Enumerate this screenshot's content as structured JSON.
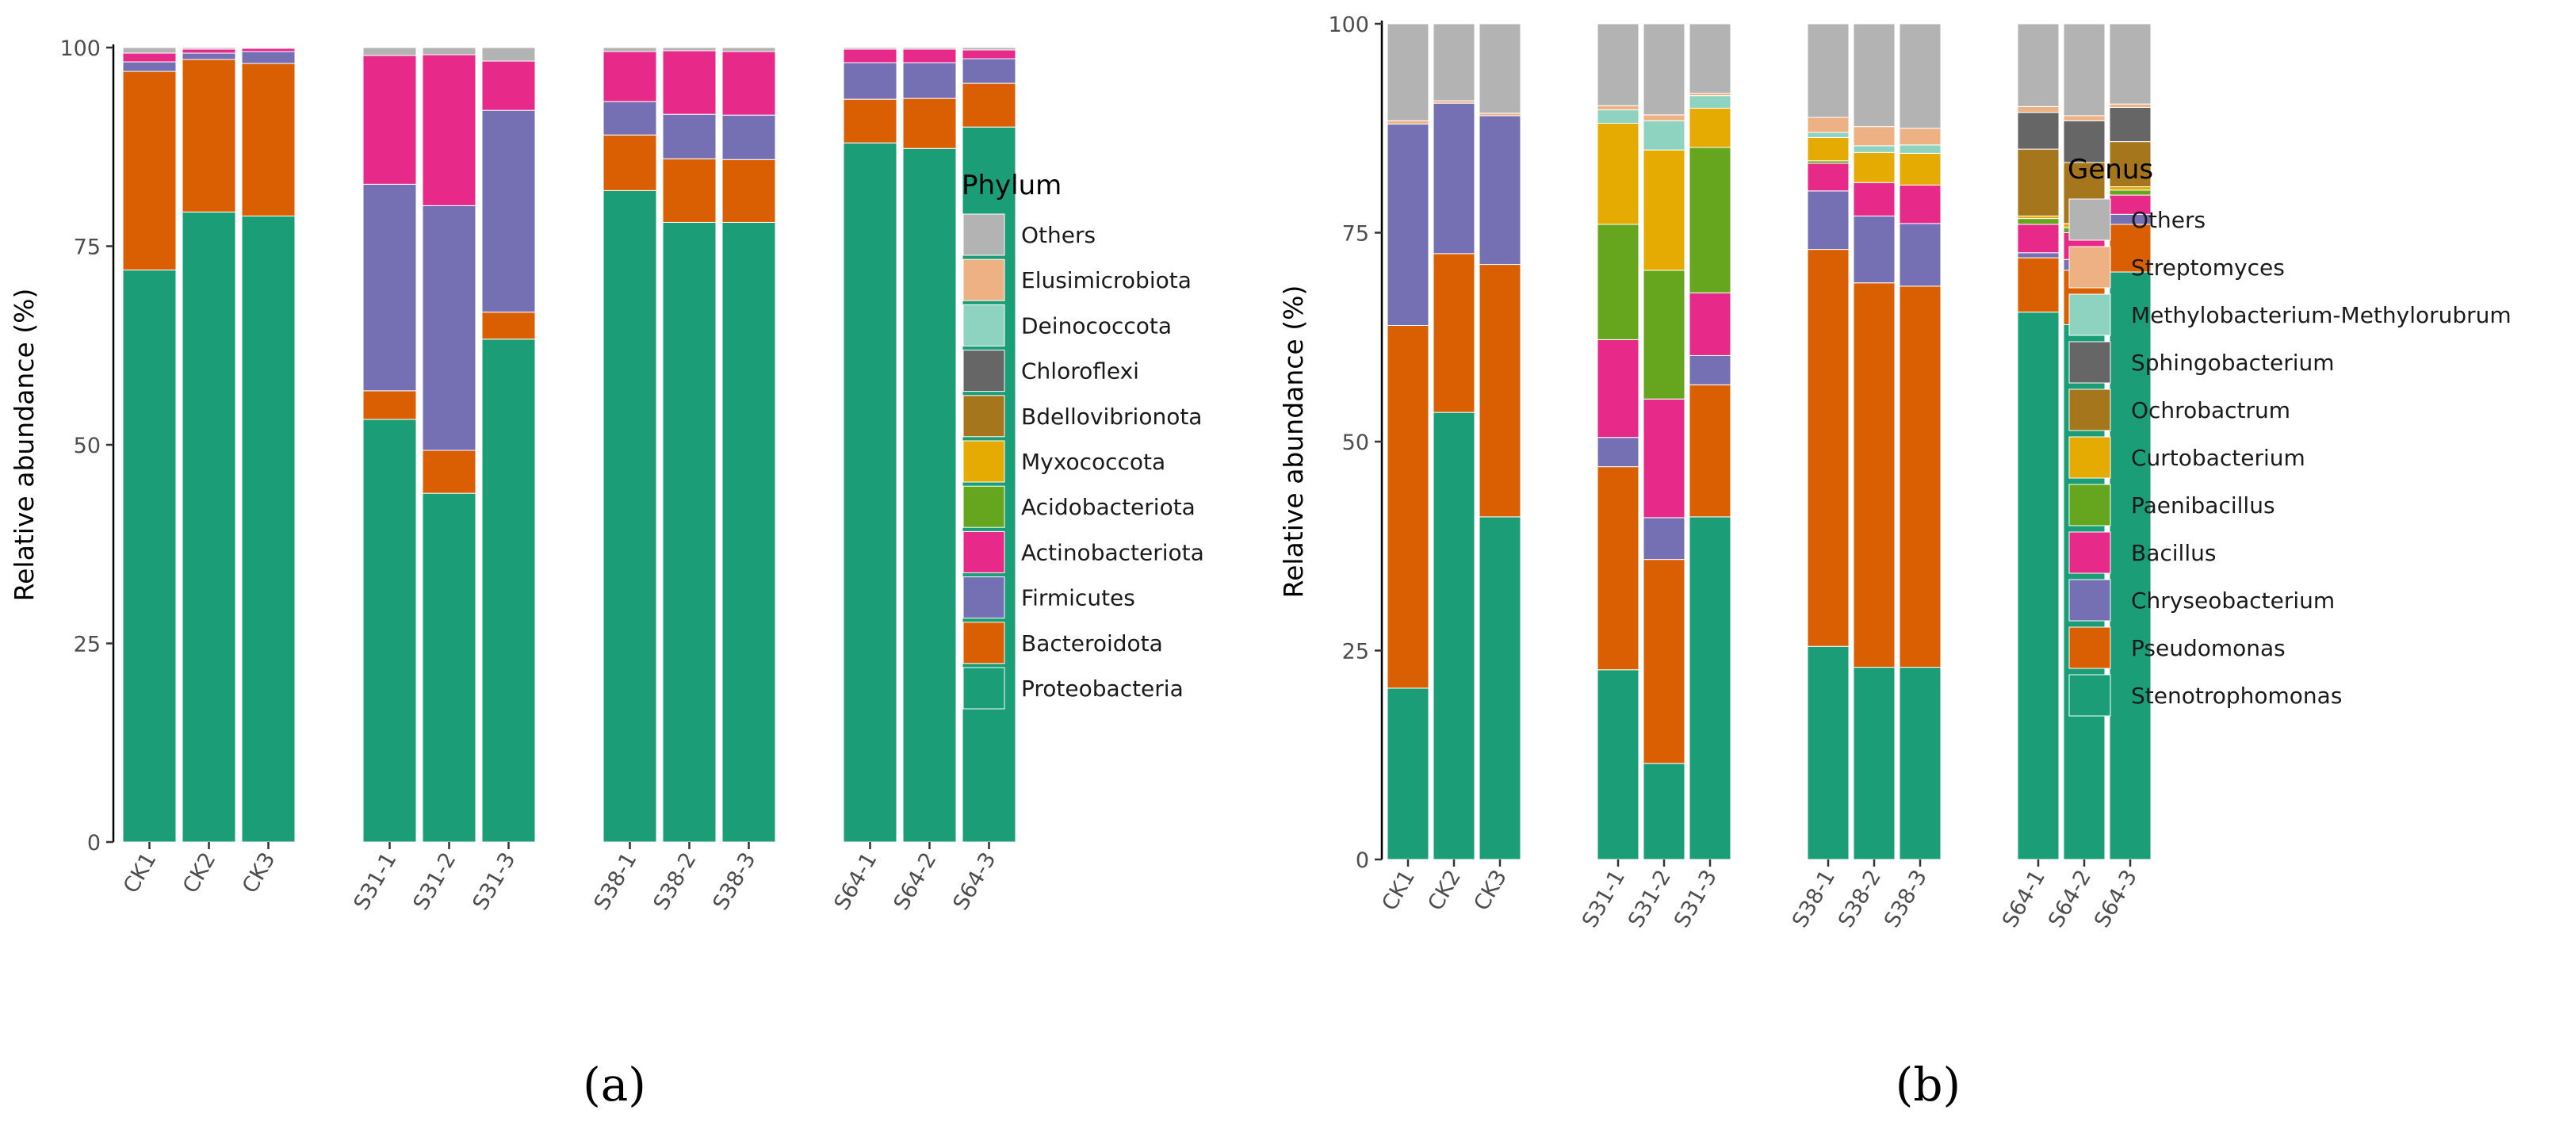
{
  "chart_data": [
    {
      "type": "bar",
      "stacked": true,
      "panel_label": "(a)",
      "ylabel": "Relative abundance (%)",
      "ylim": [
        0,
        100
      ],
      "yticks": [
        0,
        25,
        50,
        75,
        100
      ],
      "legend_title": "Phylum",
      "legend_position": "right",
      "categories": [
        "CK1",
        "CK2",
        "CK3",
        "S31-1",
        "S31-2",
        "S31-3",
        "S38-1",
        "S38-2",
        "S38-3",
        "S64-1",
        "S64-2",
        "S64-3"
      ],
      "groups": [
        [
          "CK1",
          "CK2",
          "CK3"
        ],
        [
          "S31-1",
          "S31-2",
          "S31-3"
        ],
        [
          "S38-1",
          "S38-2",
          "S38-3"
        ],
        [
          "S64-1",
          "S64-2",
          "S64-3"
        ]
      ],
      "series": [
        {
          "name": "Proteobacteria",
          "color": "#1b9e77",
          "values": [
            72.0,
            79.3,
            78.8,
            53.2,
            43.9,
            63.3,
            82.0,
            78.0,
            78.0,
            88.0,
            87.3,
            90.0
          ]
        },
        {
          "name": "Bacteroidota",
          "color": "#d95f02",
          "values": [
            25.0,
            19.2,
            19.2,
            3.6,
            5.4,
            3.4,
            7.0,
            8.0,
            7.9,
            5.5,
            6.3,
            5.5
          ]
        },
        {
          "name": "Firmicutes",
          "color": "#7570b3",
          "values": [
            1.2,
            0.8,
            1.5,
            26.0,
            30.8,
            25.4,
            4.2,
            5.6,
            5.6,
            4.6,
            4.5,
            3.1
          ]
        },
        {
          "name": "Actinobacteriota",
          "color": "#e7298a",
          "values": [
            1.1,
            0.5,
            0.4,
            16.2,
            19.0,
            6.2,
            6.3,
            8.0,
            8.0,
            1.7,
            1.7,
            1.1
          ]
        },
        {
          "name": "Acidobacteriota",
          "color": "#66a61e",
          "values": [
            0,
            0,
            0,
            0,
            0,
            0,
            0,
            0,
            0,
            0,
            0,
            0
          ]
        },
        {
          "name": "Myxococcota",
          "color": "#e6ab02",
          "values": [
            0,
            0,
            0,
            0,
            0,
            0,
            0,
            0,
            0,
            0,
            0,
            0
          ]
        },
        {
          "name": "Bdellovibrionota",
          "color": "#a6761d",
          "values": [
            0,
            0,
            0,
            0,
            0,
            0,
            0,
            0,
            0,
            0,
            0,
            0
          ]
        },
        {
          "name": "Chloroflexi",
          "color": "#666666",
          "values": [
            0,
            0,
            0,
            0,
            0,
            0,
            0,
            0,
            0,
            0,
            0,
            0
          ]
        },
        {
          "name": "Deinococcota",
          "color": "#8dd3c0",
          "values": [
            0,
            0,
            0,
            0,
            0,
            0,
            0,
            0,
            0,
            0,
            0,
            0
          ]
        },
        {
          "name": "Elusimicrobiota",
          "color": "#edb183",
          "values": [
            0,
            0,
            0,
            0,
            0,
            0,
            0,
            0,
            0,
            0,
            0,
            0
          ]
        },
        {
          "name": "Others",
          "color": "#b3b3b3",
          "values": [
            0.7,
            0.2,
            0.1,
            1.0,
            0.9,
            1.7,
            0.5,
            0.4,
            0.5,
            0.2,
            0.2,
            0.3
          ]
        }
      ]
    },
    {
      "type": "bar",
      "stacked": true,
      "panel_label": "(b)",
      "ylabel": "Relative abundance (%)",
      "ylim": [
        0,
        100
      ],
      "yticks": [
        0,
        25,
        50,
        75,
        100
      ],
      "legend_title": "Genus",
      "legend_position": "right",
      "categories": [
        "CK1",
        "CK2",
        "CK3",
        "S31-1",
        "S31-2",
        "S31-3",
        "S38-1",
        "S38-2",
        "S38-3",
        "S64-1",
        "S64-2",
        "S64-3"
      ],
      "groups": [
        [
          "CK1",
          "CK2",
          "CK3"
        ],
        [
          "S31-1",
          "S31-2",
          "S31-3"
        ],
        [
          "S38-1",
          "S38-2",
          "S38-3"
        ],
        [
          "S64-1",
          "S64-2",
          "S64-3"
        ]
      ],
      "series": [
        {
          "name": "Stenotrophomonas",
          "color": "#1b9e77",
          "values": [
            20.5,
            53.5,
            41.0,
            22.7,
            11.5,
            41.0,
            25.5,
            23.0,
            23.0,
            65.5,
            64.0,
            70.3
          ]
        },
        {
          "name": "Pseudomonas",
          "color": "#d95f02",
          "values": [
            43.4,
            19.0,
            30.2,
            24.3,
            24.4,
            15.8,
            47.5,
            46.0,
            45.6,
            6.5,
            6.5,
            5.7
          ]
        },
        {
          "name": "Chryseobacterium",
          "color": "#7570b3",
          "values": [
            24.1,
            18.0,
            17.8,
            3.5,
            5.0,
            3.5,
            7.0,
            8.0,
            7.5,
            0.6,
            1.3,
            1.2
          ]
        },
        {
          "name": "Bacillus",
          "color": "#e7298a",
          "values": [
            0,
            0,
            0,
            11.7,
            14.2,
            7.5,
            3.3,
            4.0,
            4.6,
            3.4,
            3.2,
            2.3
          ]
        },
        {
          "name": "Paenibacillus",
          "color": "#66a61e",
          "values": [
            0,
            0,
            0,
            13.8,
            15.4,
            17.4,
            0.3,
            0,
            0,
            0.7,
            0.6,
            0.6
          ]
        },
        {
          "name": "Curtobacterium",
          "color": "#e6ab02",
          "values": [
            0,
            0,
            0,
            12.1,
            14.4,
            4.7,
            2.8,
            3.6,
            3.8,
            0.3,
            0.5,
            0.4
          ]
        },
        {
          "name": "Ochrobactrum",
          "color": "#a6761d",
          "values": [
            0,
            0,
            0,
            0,
            0,
            0,
            0,
            0,
            0,
            8.0,
            7.3,
            5.4
          ]
        },
        {
          "name": "Sphingobacterium",
          "color": "#666666",
          "values": [
            0,
            0,
            0,
            0,
            0,
            0,
            0,
            0,
            0,
            4.4,
            5.0,
            4.1
          ]
        },
        {
          "name": "Methylobacterium-Methylorubrum",
          "color": "#8dd3c0",
          "values": [
            0,
            0,
            0,
            1.6,
            3.5,
            1.5,
            0.6,
            0.8,
            1.0,
            0,
            0,
            0
          ]
        },
        {
          "name": "Streptomyces",
          "color": "#edb183",
          "values": [
            0.4,
            0.3,
            0.3,
            0.5,
            0.7,
            0.3,
            1.8,
            2.3,
            2.0,
            0.7,
            0.6,
            0.4
          ]
        },
        {
          "name": "Others",
          "color": "#b3b3b3",
          "values": [
            11.6,
            9.2,
            10.7,
            9.8,
            10.9,
            8.3,
            11.2,
            12.3,
            12.5,
            9.9,
            11.0,
            9.6
          ]
        }
      ]
    }
  ]
}
